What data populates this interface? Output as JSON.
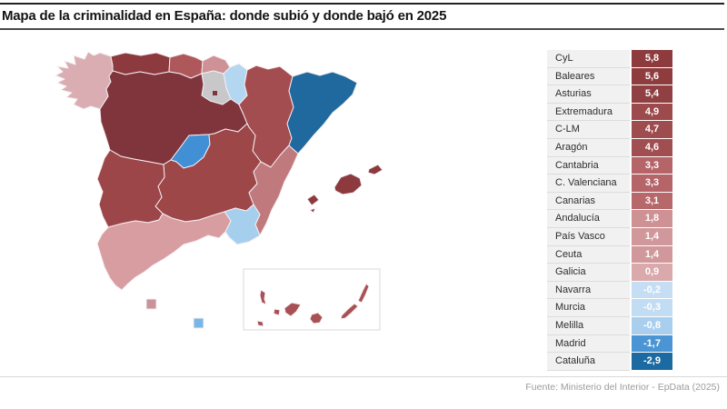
{
  "title": "Mapa de la criminalidad en España: donde subió y donde bajó en 2025",
  "footer": {
    "source": "Fuente: Ministerio del Interior - EpData (2025)"
  },
  "chart_data": {
    "type": "choropleth",
    "title": "Mapa de la criminalidad en España: donde subió y donde bajó en 2025",
    "legend_position": "right",
    "value_format": "decimal-comma",
    "colorscale": {
      "positive_max": "#8D3B3D",
      "positive_min": "#D9A9AC",
      "negative_min": "#C5DEF4",
      "negative_max": "#1B6AA1",
      "no_data": "#C8C8CB"
    },
    "regions": [
      {
        "id": "cyl",
        "label": "CyL",
        "value": "5,8",
        "value_num": 5.8,
        "color": "#8D3B3D",
        "map_color": "#80353D"
      },
      {
        "id": "baleares",
        "label": "Baleares",
        "value": "5,6",
        "value_num": 5.6,
        "color": "#8E3C3E",
        "map_color": "#8C3A3E"
      },
      {
        "id": "asturias",
        "label": "Asturias",
        "value": "5,4",
        "value_num": 5.4,
        "color": "#904042",
        "map_color": "#8C3A3E"
      },
      {
        "id": "extremadura",
        "label": "Extremadura",
        "value": "4,9",
        "value_num": 4.9,
        "color": "#9D4A4C",
        "map_color": "#9C4649"
      },
      {
        "id": "clm",
        "label": "C-LM",
        "value": "4,7",
        "value_num": 4.7,
        "color": "#9F4C4E",
        "map_color": "#9D4749"
      },
      {
        "id": "aragon",
        "label": "Aragón",
        "value": "4,6",
        "value_num": 4.6,
        "color": "#A14E50",
        "map_color": "#A34D50"
      },
      {
        "id": "cantabria",
        "label": "Cantabria",
        "value": "3,3",
        "value_num": 3.3,
        "color": "#B56468",
        "map_color": "#AE585C"
      },
      {
        "id": "cvalenciana",
        "label": "C. Valenciana",
        "value": "3,3",
        "value_num": 3.3,
        "color": "#B56468",
        "map_color": "#C07A7E"
      },
      {
        "id": "canarias",
        "label": "Canarias",
        "value": "3,1",
        "value_num": 3.1,
        "color": "#B7686B",
        "map_color": "#A85154"
      },
      {
        "id": "andalucia",
        "label": "Andalucía",
        "value": "1,8",
        "value_num": 1.8,
        "color": "#CE9194",
        "map_color": "#D79DA1"
      },
      {
        "id": "paisvasco",
        "label": "País Vasco",
        "value": "1,4",
        "value_num": 1.4,
        "color": "#D1989B",
        "map_color": "#CD9196"
      },
      {
        "id": "ceuta",
        "label": "Ceuta",
        "value": "1,4",
        "value_num": 1.4,
        "color": "#D1989B",
        "map_color": "#C9939A"
      },
      {
        "id": "galicia",
        "label": "Galicia",
        "value": "0,9",
        "value_num": 0.9,
        "color": "#D9A9AC",
        "map_color": "#D9ADB2"
      },
      {
        "id": "navarra",
        "label": "Navarra",
        "value": "-0,2",
        "value_num": -0.2,
        "color": "#C5DEF4",
        "map_color": "#B3D7F1"
      },
      {
        "id": "murcia",
        "label": "Murcia",
        "value": "-0,3",
        "value_num": -0.3,
        "color": "#C2DCF3",
        "map_color": "#A6CFEE"
      },
      {
        "id": "melilla",
        "label": "Melilla",
        "value": "-0,8",
        "value_num": -0.8,
        "color": "#AACFEE",
        "map_color": "#79B6E6"
      },
      {
        "id": "madrid",
        "label": "Madrid",
        "value": "-1,7",
        "value_num": -1.7,
        "color": "#4C95D4",
        "map_color": "#4190D5"
      },
      {
        "id": "cataluna",
        "label": "Cataluña",
        "value": "-2,9",
        "value_num": -2.9,
        "color": "#1B6AA1",
        "map_color": "#20699E"
      }
    ],
    "no_data_regions": [
      {
        "id": "larioja",
        "map_color": "#C8C8CB"
      }
    ]
  }
}
